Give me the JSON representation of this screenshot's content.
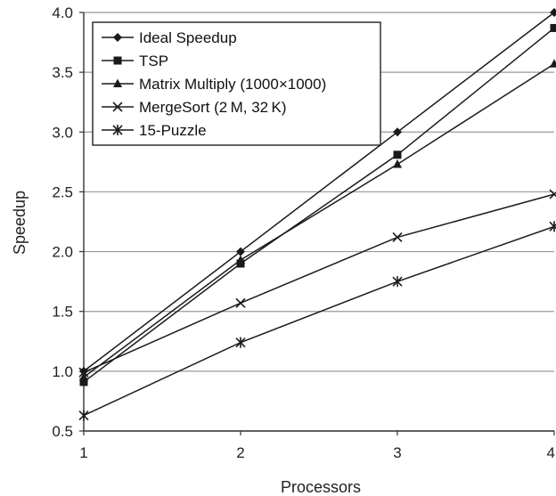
{
  "chart_data": {
    "type": "line",
    "xlabel": "Processors",
    "ylabel": "Speedup",
    "x": [
      1,
      2,
      3,
      4
    ],
    "xlim": [
      1,
      4
    ],
    "ylim": [
      0.5,
      4.0
    ],
    "xticks": [
      "1",
      "2",
      "3",
      "4"
    ],
    "yticks": [
      "0.5",
      "1.0",
      "1.5",
      "2.0",
      "2.5",
      "3.0",
      "3.5",
      "4.0"
    ],
    "grid": "horizontal",
    "legend_position": "top-left",
    "series": [
      {
        "name": "Ideal Speedup",
        "marker": "diamond",
        "values": [
          1.0,
          2.0,
          3.0,
          4.0
        ]
      },
      {
        "name": "TSP",
        "marker": "square",
        "values": [
          0.91,
          1.9,
          2.81,
          3.87
        ]
      },
      {
        "name": "Matrix Multiply (1000×1000)",
        "marker": "triangle",
        "values": [
          0.95,
          1.93,
          2.73,
          3.57
        ]
      },
      {
        "name": "MergeSort (2 M, 32 K)",
        "marker": "x",
        "values": [
          0.99,
          1.57,
          2.12,
          2.48
        ]
      },
      {
        "name": "15-Puzzle",
        "marker": "asterisk",
        "values": [
          0.63,
          1.24,
          1.75,
          2.21
        ]
      }
    ],
    "line_color": "#1a1a1a"
  }
}
